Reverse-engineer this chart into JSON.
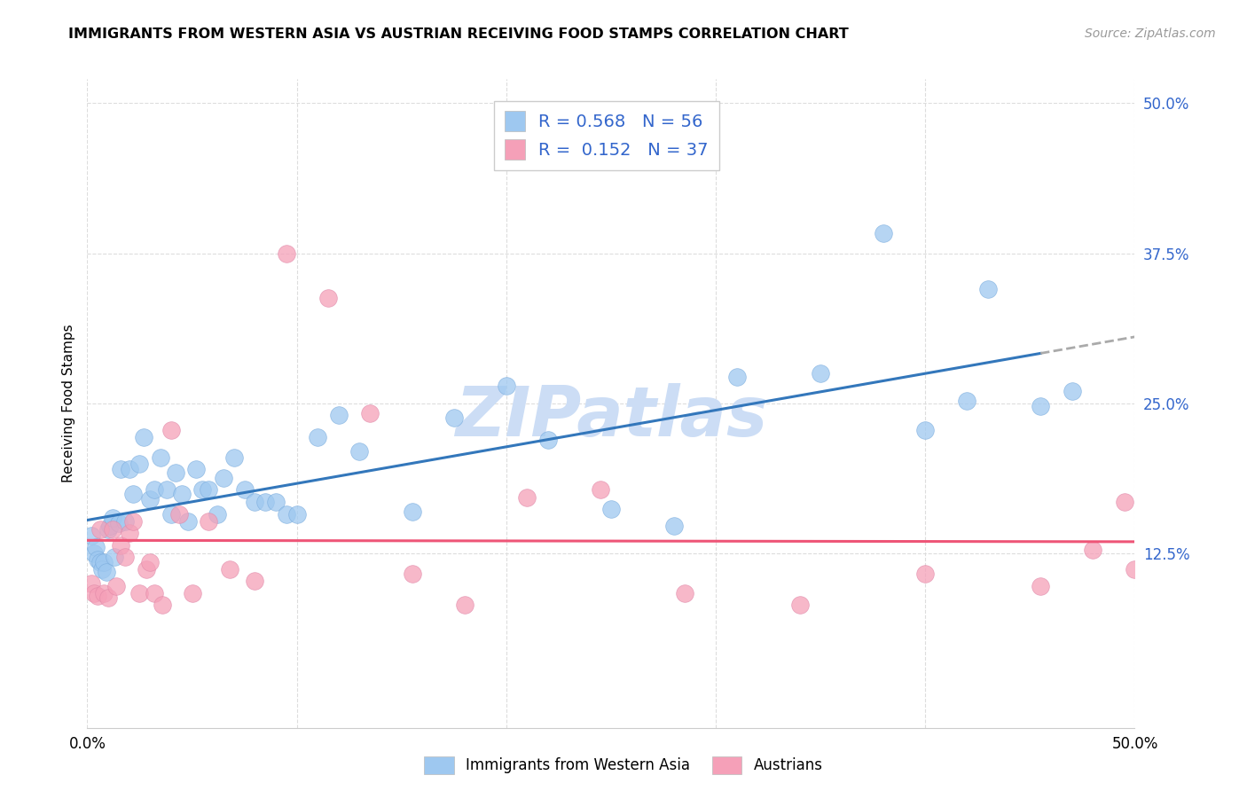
{
  "title": "IMMIGRANTS FROM WESTERN ASIA VS AUSTRIAN RECEIVING FOOD STAMPS CORRELATION CHART",
  "source": "Source: ZipAtlas.com",
  "ylabel": "Receiving Food Stamps",
  "xlim": [
    0.0,
    0.5
  ],
  "ylim": [
    -0.02,
    0.52
  ],
  "xticks": [
    0.0,
    0.1,
    0.2,
    0.3,
    0.4,
    0.5
  ],
  "yticks": [
    0.125,
    0.25,
    0.375,
    0.5
  ],
  "xtick_labels": [
    "0.0%",
    "",
    "",
    "",
    "",
    "50.0%"
  ],
  "ytick_labels": [
    "12.5%",
    "25.0%",
    "37.5%",
    "50.0%"
  ],
  "blue_color": "#9ec8f0",
  "pink_color": "#f5a0b8",
  "blue_line_color": "#3377bb",
  "pink_line_color": "#ee5577",
  "dashed_line_color": "#aaaaaa",
  "watermark_color": "#ccddf5",
  "legend_text_color": "#3366cc",
  "blue_x": [
    0.002,
    0.003,
    0.004,
    0.005,
    0.006,
    0.007,
    0.008,
    0.009,
    0.01,
    0.011,
    0.012,
    0.013,
    0.015,
    0.016,
    0.018,
    0.02,
    0.022,
    0.025,
    0.027,
    0.03,
    0.032,
    0.035,
    0.038,
    0.04,
    0.042,
    0.045,
    0.048,
    0.052,
    0.055,
    0.058,
    0.062,
    0.065,
    0.07,
    0.075,
    0.08,
    0.085,
    0.09,
    0.095,
    0.1,
    0.11,
    0.12,
    0.13,
    0.155,
    0.175,
    0.2,
    0.22,
    0.25,
    0.28,
    0.31,
    0.35,
    0.38,
    0.4,
    0.42,
    0.43,
    0.455,
    0.47
  ],
  "blue_y": [
    0.14,
    0.125,
    0.13,
    0.12,
    0.118,
    0.112,
    0.118,
    0.11,
    0.145,
    0.148,
    0.155,
    0.122,
    0.15,
    0.195,
    0.152,
    0.195,
    0.175,
    0.2,
    0.222,
    0.17,
    0.178,
    0.205,
    0.178,
    0.158,
    0.192,
    0.175,
    0.152,
    0.195,
    0.178,
    0.178,
    0.158,
    0.188,
    0.205,
    0.178,
    0.168,
    0.168,
    0.168,
    0.158,
    0.158,
    0.222,
    0.24,
    0.21,
    0.16,
    0.238,
    0.265,
    0.22,
    0.162,
    0.148,
    0.272,
    0.275,
    0.392,
    0.228,
    0.252,
    0.345,
    0.248,
    0.26
  ],
  "pink_x": [
    0.002,
    0.003,
    0.005,
    0.006,
    0.008,
    0.01,
    0.012,
    0.014,
    0.016,
    0.018,
    0.02,
    0.022,
    0.025,
    0.028,
    0.03,
    0.032,
    0.036,
    0.04,
    0.044,
    0.05,
    0.058,
    0.068,
    0.08,
    0.095,
    0.115,
    0.135,
    0.155,
    0.18,
    0.21,
    0.245,
    0.285,
    0.34,
    0.4,
    0.455,
    0.48,
    0.495,
    0.5
  ],
  "pink_y": [
    0.1,
    0.092,
    0.09,
    0.145,
    0.092,
    0.088,
    0.145,
    0.098,
    0.132,
    0.122,
    0.142,
    0.152,
    0.092,
    0.112,
    0.118,
    0.092,
    0.082,
    0.228,
    0.158,
    0.092,
    0.152,
    0.112,
    0.102,
    0.375,
    0.338,
    0.242,
    0.108,
    0.082,
    0.172,
    0.178,
    0.092,
    0.082,
    0.108,
    0.098,
    0.128,
    0.168,
    0.112
  ]
}
